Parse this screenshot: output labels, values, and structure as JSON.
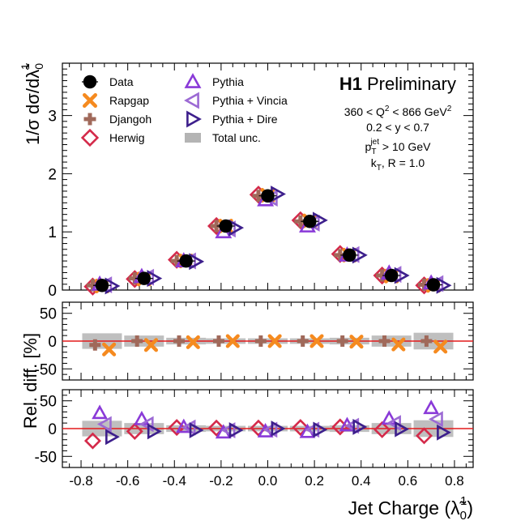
{
  "chart_data": {
    "type": "scatter",
    "x_axis": {
      "label": "Jet Charge (λ̃",
      "label_sup": "1",
      "label_sub": "0",
      "label_end": ")",
      "range": [
        -0.88,
        0.88
      ],
      "ticks": [
        "-0.8",
        "-0.6",
        "-0.4",
        "-0.2",
        "0.0",
        "0.2",
        "0.4",
        "0.6",
        "0.8"
      ]
    },
    "panels": [
      {
        "id": "main",
        "ylabel": "1/σ dσ/dλ̃",
        "ylabel_sup": "1",
        "ylabel_sub": "0",
        "ylim": [
          0,
          3.9
        ],
        "yticks": [
          "0",
          "1",
          "2",
          "3"
        ]
      },
      {
        "id": "ratio_rapgap_djangoh",
        "ylabel": "Rel. diff. [%]",
        "ylim": [
          -70,
          70
        ],
        "yticks": [
          "-50",
          "0",
          "50"
        ]
      },
      {
        "id": "ratio_pythia",
        "ylim": [
          -70,
          70
        ],
        "yticks": [
          "-50",
          "0",
          "50"
        ]
      }
    ],
    "bin_centers": [
      -0.71,
      -0.53,
      -0.35,
      -0.18,
      0.0,
      0.18,
      0.35,
      0.53,
      0.71
    ],
    "series": [
      {
        "name": "Data",
        "marker": "circle",
        "color": "#000000",
        "values": [
          0.08,
          0.2,
          0.5,
          1.1,
          1.62,
          1.18,
          0.6,
          0.25,
          0.09
        ],
        "rel_diff": [
          0,
          0,
          0,
          0,
          0,
          0,
          0,
          0,
          0
        ]
      },
      {
        "name": "Rapgap",
        "marker": "cross",
        "color": "#f58a1f",
        "values": [
          0.07,
          0.19,
          0.5,
          1.1,
          1.63,
          1.19,
          0.6,
          0.24,
          0.08
        ],
        "rel_diff": [
          -15,
          -7,
          -2,
          0,
          0,
          0,
          -1,
          -6,
          -10
        ]
      },
      {
        "name": "Djangoh",
        "marker": "plus",
        "color": "#a0695a",
        "values": [
          0.08,
          0.2,
          0.5,
          1.1,
          1.62,
          1.18,
          0.6,
          0.25,
          0.09
        ],
        "rel_diff": [
          -7,
          0,
          0,
          0,
          0,
          0,
          0,
          0,
          0
        ]
      },
      {
        "name": "Herwig",
        "marker": "diamond",
        "color": "#d42a4a",
        "values": [
          0.06,
          0.19,
          0.52,
          1.1,
          1.64,
          1.2,
          0.62,
          0.25,
          0.08
        ],
        "rel_diff": [
          -22,
          -5,
          2,
          1,
          1,
          2,
          3,
          -2,
          -13
        ]
      },
      {
        "name": "Pythia",
        "marker": "triangle-up",
        "color": "#8a3ad8",
        "values": [
          0.1,
          0.23,
          0.5,
          1.0,
          1.55,
          1.1,
          0.6,
          0.29,
          0.12
        ],
        "rel_diff": [
          28,
          17,
          3,
          -7,
          -5,
          -6,
          6,
          18,
          37
        ]
      },
      {
        "name": "Pythia + Vincia",
        "marker": "triangle-left",
        "color": "#9c6ad4",
        "values": [
          0.09,
          0.22,
          0.5,
          1.05,
          1.58,
          1.15,
          0.61,
          0.27,
          0.11
        ],
        "rel_diff": [
          8,
          8,
          2,
          -3,
          -2,
          -2,
          5,
          10,
          17
        ]
      },
      {
        "name": "Pythia + Dire",
        "marker": "triangle-right",
        "color": "#3d1f8c",
        "values": [
          0.07,
          0.2,
          0.49,
          1.07,
          1.65,
          1.2,
          0.6,
          0.25,
          0.08
        ],
        "rel_diff": [
          -15,
          -5,
          -3,
          -3,
          0,
          -2,
          3,
          -1,
          -7
        ]
      }
    ],
    "total_unc": {
      "name": "Total unc.",
      "color": "#b4b4b4",
      "values": [
        14,
        10,
        6,
        5,
        5,
        5,
        6,
        10,
        15
      ]
    },
    "legend_position": "top-left",
    "grid": false
  },
  "text": {
    "brand_h1": "H1",
    "brand_preliminary": "Preliminary",
    "cut_line1_a": "360 < Q",
    "cut_line1_sup": "2",
    "cut_line1_b": " < 866 GeV",
    "cut_line1_sup2": "2",
    "cut_line2": "0.2 < y < 0.7",
    "cut_line3_a": "p",
    "cut_line3_sub": "T",
    "cut_line3_sup": "jet",
    "cut_line3_b": " > 10 GeV",
    "cut_line4_a": "k",
    "cut_line4_sub": "T",
    "cut_line4_b": ", R = 1.0"
  }
}
